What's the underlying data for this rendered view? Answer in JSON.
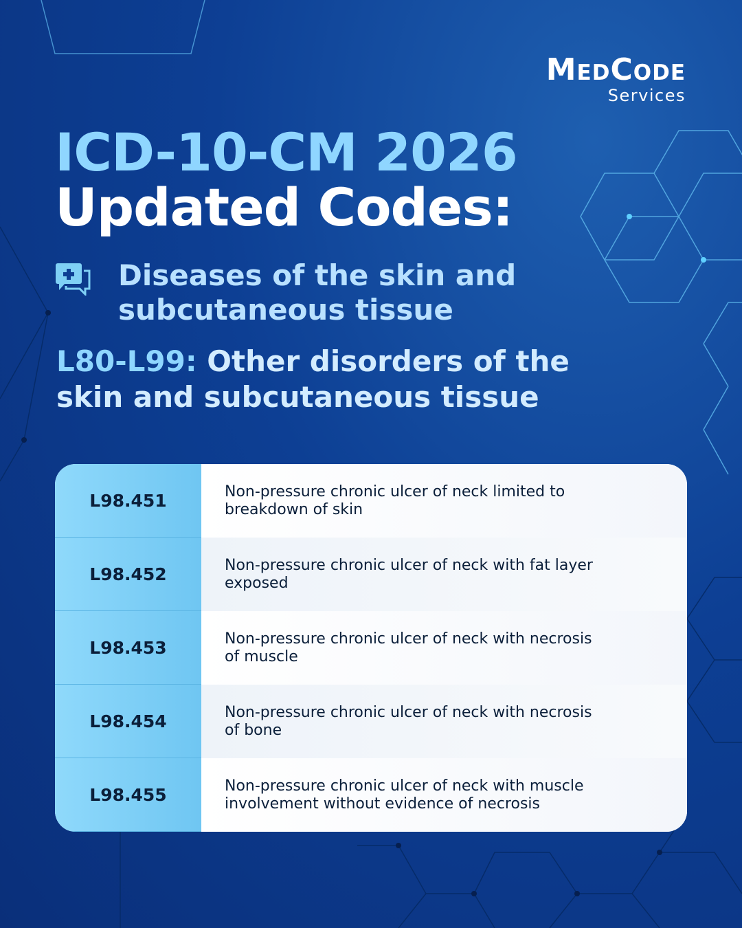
{
  "logo": {
    "brand": "MedCode",
    "tagline": "Services"
  },
  "header": {
    "title_line1": "ICD-10-CM 2026",
    "title_line2": "Updated Codes:"
  },
  "chapter": "Diseases of the skin and subcutaneous tissue",
  "block": {
    "range": "L80-L99:",
    "label": "Other disorders of the skin and subcutaneous tissue"
  },
  "table": {
    "rows": [
      [
        "L98.451",
        "Non-pressure chronic ulcer of neck limited to breakdown of skin"
      ],
      [
        "L98.452",
        "Non-pressure chronic ulcer of neck with fat layer exposed"
      ],
      [
        "L98.453",
        "Non-pressure chronic ulcer of neck with necrosis of muscle"
      ],
      [
        "L98.454",
        "Non-pressure chronic ulcer of neck with necrosis of bone"
      ],
      [
        "L98.455",
        "Non-pressure chronic ulcer of neck with muscle involvement without evidence of necrosis"
      ]
    ]
  }
}
